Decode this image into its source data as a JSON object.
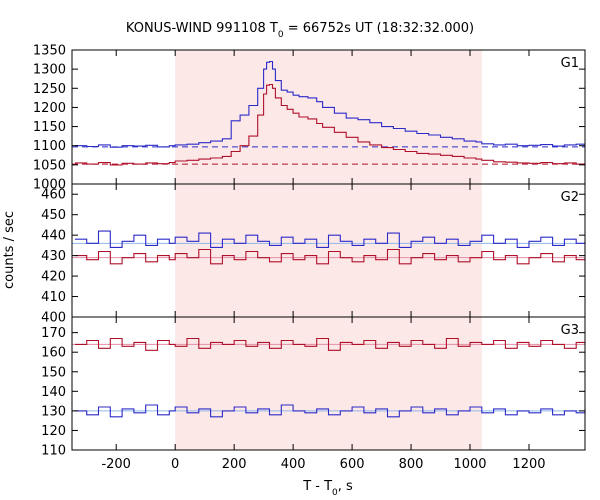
{
  "chart_data": {
    "type": "line",
    "title": "KONUS-WIND 991108 T",
    "title_sub": "0",
    "title_rest": " = 66752s UT (18:32:32.000)",
    "xlabel": "T - T",
    "xlabel_sub": "0",
    "xlabel_rest": ", s",
    "ylabel": "counts / sec",
    "xlim": [
      -350,
      1390
    ],
    "xticks": [
      -200,
      0,
      200,
      400,
      600,
      800,
      1000,
      1200
    ],
    "x_tick_labels": [
      "-200",
      "0",
      "200",
      "400",
      "600",
      "800",
      "1000",
      "1200"
    ],
    "highlight_interval": [
      0,
      1040
    ],
    "highlight_color": "#fde8e8",
    "series_colors": {
      "blue": "#2b2bc8",
      "red": "#b0102a",
      "blue_fit": "#8fb6e8",
      "red_fit": "#e28fa6"
    },
    "panels": [
      {
        "label": "G1",
        "ylim": [
          1000,
          1350
        ],
        "yticks": [
          1000,
          1050,
          1100,
          1150,
          1200,
          1250,
          1300,
          1350
        ],
        "y_tick_labels": [
          "1000",
          "1050",
          "1100",
          "1150",
          "1200",
          "1250",
          "1300",
          "1350"
        ],
        "background_blue": 1097,
        "background_red": 1052,
        "series": [
          {
            "color": "blue",
            "x": [
              -340,
              -300,
              -260,
              -220,
              -180,
              -140,
              -100,
              -60,
              -20,
              0,
              40,
              80,
              120,
              160,
              190,
              220,
              250,
              280,
              300,
              310,
              320,
              330,
              340,
              360,
              380,
              400,
              420,
              450,
              480,
              500,
              540,
              580,
              620,
              660,
              700,
              740,
              780,
              820,
              860,
              900,
              940,
              980,
              1020,
              1040,
              1080,
              1120,
              1160,
              1200,
              1240,
              1280,
              1320,
              1360,
              1390
            ],
            "y": [
              1100,
              1098,
              1102,
              1096,
              1100,
              1099,
              1101,
              1097,
              1100,
              1102,
              1104,
              1108,
              1112,
              1118,
              1165,
              1180,
              1205,
              1250,
              1300,
              1318,
              1320,
              1300,
              1270,
              1245,
              1240,
              1232,
              1228,
              1225,
              1215,
              1200,
              1185,
              1172,
              1168,
              1160,
              1150,
              1145,
              1138,
              1132,
              1128,
              1122,
              1118,
              1112,
              1110,
              1105,
              1102,
              1104,
              1100,
              1101,
              1103,
              1099,
              1102,
              1104,
              1105
            ]
          },
          {
            "color": "red",
            "x": [
              -340,
              -300,
              -260,
              -220,
              -180,
              -140,
              -100,
              -60,
              -20,
              0,
              40,
              80,
              120,
              160,
              190,
              220,
              250,
              280,
              300,
              310,
              320,
              330,
              340,
              360,
              380,
              400,
              420,
              450,
              480,
              500,
              540,
              580,
              620,
              660,
              700,
              740,
              780,
              820,
              860,
              900,
              940,
              980,
              1020,
              1040,
              1080,
              1120,
              1160,
              1200,
              1240,
              1280,
              1320,
              1360,
              1390
            ],
            "y": [
              1055,
              1052,
              1056,
              1050,
              1054,
              1052,
              1055,
              1053,
              1056,
              1060,
              1062,
              1065,
              1068,
              1072,
              1085,
              1100,
              1125,
              1180,
              1235,
              1258,
              1260,
              1250,
              1225,
              1205,
              1195,
              1185,
              1175,
              1170,
              1158,
              1148,
              1135,
              1122,
              1110,
              1102,
              1095,
              1090,
              1085,
              1080,
              1078,
              1075,
              1072,
              1068,
              1065,
              1062,
              1058,
              1057,
              1055,
              1054,
              1056,
              1053,
              1055,
              1052,
              1054
            ]
          }
        ]
      },
      {
        "label": "G2",
        "ylim": [
          400,
          465
        ],
        "yticks": [
          400,
          410,
          420,
          430,
          440,
          450,
          460
        ],
        "y_tick_labels": [
          "400",
          "410",
          "420",
          "430",
          "440",
          "450",
          "460"
        ],
        "background_blue": 436,
        "background_red": 429,
        "series": [
          {
            "color": "blue",
            "x": [
              -340,
              -300,
              -260,
              -220,
              -180,
              -140,
              -100,
              -60,
              -20,
              0,
              40,
              80,
              120,
              160,
              200,
              240,
              280,
              320,
              360,
              400,
              440,
              480,
              520,
              560,
              600,
              640,
              680,
              720,
              760,
              800,
              840,
              880,
              920,
              960,
              1000,
              1040,
              1080,
              1120,
              1160,
              1200,
              1240,
              1280,
              1320,
              1360,
              1390
            ],
            "y": [
              438,
              436,
              442,
              434,
              437,
              440,
              435,
              438,
              436,
              439,
              437,
              441,
              434,
              438,
              436,
              440,
              437,
              435,
              439,
              436,
              438,
              434,
              440,
              437,
              435,
              438,
              436,
              441,
              434,
              437,
              439,
              436,
              438,
              435,
              437,
              440,
              436,
              438,
              434,
              437,
              439,
              435,
              438,
              436,
              437
            ]
          },
          {
            "color": "red",
            "x": [
              -340,
              -300,
              -260,
              -220,
              -180,
              -140,
              -100,
              -60,
              -20,
              0,
              40,
              80,
              120,
              160,
              200,
              240,
              280,
              320,
              360,
              400,
              440,
              480,
              520,
              560,
              600,
              640,
              680,
              720,
              760,
              800,
              840,
              880,
              920,
              960,
              1000,
              1040,
              1080,
              1120,
              1160,
              1200,
              1240,
              1280,
              1320,
              1360,
              1390
            ],
            "y": [
              430,
              428,
              432,
              426,
              429,
              431,
              427,
              430,
              428,
              431,
              429,
              433,
              426,
              430,
              428,
              432,
              429,
              427,
              431,
              428,
              430,
              426,
              432,
              429,
              427,
              430,
              428,
              433,
              426,
              429,
              431,
              428,
              430,
              427,
              429,
              432,
              428,
              430,
              426,
              429,
              431,
              427,
              430,
              428,
              429
            ]
          }
        ]
      },
      {
        "label": "G3",
        "ylim": [
          110,
          178
        ],
        "yticks": [
          110,
          120,
          130,
          140,
          150,
          160,
          170
        ],
        "y_tick_labels": [
          "110",
          "120",
          "130",
          "140",
          "150",
          "160",
          "170"
        ],
        "background_blue": 130,
        "background_red": 164,
        "series": [
          {
            "color": "red",
            "x": [
              -340,
              -300,
              -260,
              -220,
              -180,
              -140,
              -100,
              -60,
              -20,
              0,
              40,
              80,
              120,
              160,
              200,
              240,
              280,
              320,
              360,
              400,
              440,
              480,
              520,
              560,
              600,
              640,
              680,
              720,
              760,
              800,
              840,
              880,
              920,
              960,
              1000,
              1040,
              1080,
              1120,
              1160,
              1200,
              1240,
              1280,
              1320,
              1360,
              1390
            ],
            "y": [
              164,
              166,
              162,
              167,
              163,
              165,
              161,
              166,
              164,
              163,
              167,
              162,
              165,
              164,
              166,
              163,
              165,
              162,
              166,
              164,
              163,
              167,
              161,
              165,
              164,
              166,
              162,
              165,
              163,
              166,
              164,
              162,
              167,
              163,
              165,
              164,
              166,
              162,
              165,
              163,
              166,
              164,
              162,
              165,
              164
            ]
          },
          {
            "color": "blue",
            "x": [
              -340,
              -300,
              -260,
              -220,
              -180,
              -140,
              -100,
              -60,
              -20,
              0,
              40,
              80,
              120,
              160,
              200,
              240,
              280,
              320,
              360,
              400,
              440,
              480,
              520,
              560,
              600,
              640,
              680,
              720,
              760,
              800,
              840,
              880,
              920,
              960,
              1000,
              1040,
              1080,
              1120,
              1160,
              1200,
              1240,
              1280,
              1320,
              1360,
              1390
            ],
            "y": [
              130,
              128,
              132,
              127,
              131,
              129,
              133,
              128,
              130,
              132,
              129,
              131,
              127,
              130,
              132,
              129,
              131,
              128,
              133,
              130,
              129,
              131,
              128,
              130,
              132,
              129,
              131,
              127,
              130,
              132,
              129,
              131,
              128,
              130,
              132,
              129,
              131,
              128,
              130,
              129,
              131,
              128,
              130,
              129,
              131
            ]
          }
        ]
      }
    ]
  }
}
